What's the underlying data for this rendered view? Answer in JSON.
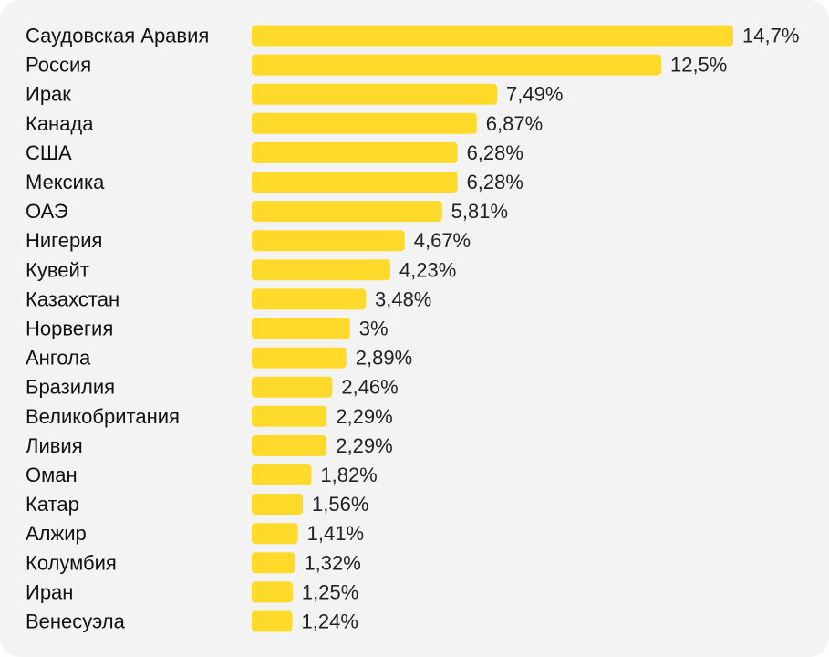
{
  "chart_data": {
    "type": "bar",
    "orientation": "horizontal",
    "categories": [
      "Саудовская Аравия",
      "Россия",
      "Ирак",
      "Канада",
      "США",
      "Мексика",
      "ОАЭ",
      "Нигерия",
      "Кувейт",
      "Казахстан",
      "Норвегия",
      "Ангола",
      "Бразилия",
      "Великобритания",
      "Ливия",
      "Оман",
      "Катар",
      "Алжир",
      "Колумбия",
      "Иран",
      "Венесуэла"
    ],
    "values": [
      14.7,
      12.5,
      7.49,
      6.87,
      6.28,
      6.28,
      5.81,
      4.67,
      4.23,
      3.48,
      3,
      2.89,
      2.46,
      2.29,
      2.29,
      1.82,
      1.56,
      1.41,
      1.32,
      1.25,
      1.24
    ],
    "value_labels": [
      "14,7%",
      "12,5%",
      "7,49%",
      "6,87%",
      "6,28%",
      "6,28%",
      "5,81%",
      "4,67%",
      "4,23%",
      "3,48%",
      "3%",
      "2,89%",
      "2,46%",
      "2,29%",
      "2,29%",
      "1,82%",
      "1,56%",
      "1,41%",
      "1,32%",
      "1,25%",
      "1,24%"
    ],
    "unit": "%",
    "xlim": [
      0,
      14.7
    ],
    "grid": false,
    "axes_visible": false,
    "bar_color": "#FFDA2B",
    "background_color": "#F3F3F3"
  }
}
